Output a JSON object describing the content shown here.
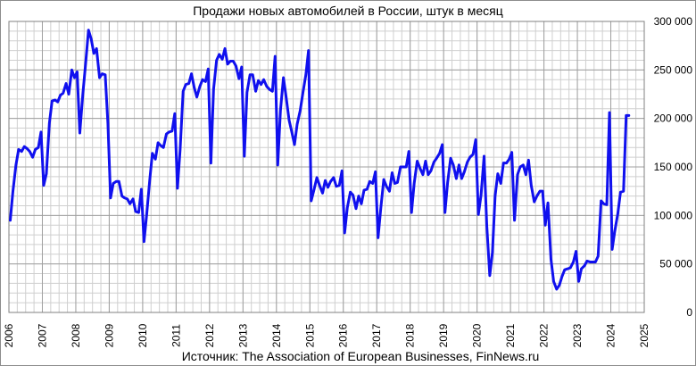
{
  "chart_data": {
    "type": "line",
    "title": "Продажи новых автомобилей в России, штук в месяц",
    "source": "Источник: The Association of European Businesses, FinNews.ru",
    "xlabel": "",
    "ylabel": "",
    "xlim": [
      2006,
      2025
    ],
    "ylim": [
      0,
      300000
    ],
    "x_ticks": [
      2006,
      2007,
      2008,
      2009,
      2010,
      2011,
      2012,
      2013,
      2014,
      2015,
      2016,
      2017,
      2018,
      2019,
      2020,
      2021,
      2022,
      2023,
      2024,
      2025
    ],
    "y_ticks": [
      0,
      50000,
      100000,
      150000,
      200000,
      250000,
      300000
    ],
    "y_tick_labels": [
      "0",
      "50 000",
      "100 000",
      "150 000",
      "200 000",
      "250 000",
      "300 000"
    ],
    "y_axis_side": "right",
    "grid": true,
    "line_color": "#1010ee",
    "series": [
      {
        "name": "",
        "x": [
          2006.04,
          2006.12,
          2006.21,
          2006.29,
          2006.38,
          2006.46,
          2006.54,
          2006.62,
          2006.71,
          2006.79,
          2006.88,
          2006.96,
          2007.04,
          2007.12,
          2007.21,
          2007.29,
          2007.38,
          2007.46,
          2007.54,
          2007.62,
          2007.71,
          2007.79,
          2007.88,
          2007.96,
          2008.04,
          2008.12,
          2008.21,
          2008.29,
          2008.38,
          2008.46,
          2008.54,
          2008.62,
          2008.71,
          2008.79,
          2008.88,
          2008.96,
          2009.04,
          2009.12,
          2009.21,
          2009.29,
          2009.38,
          2009.46,
          2009.54,
          2009.62,
          2009.71,
          2009.79,
          2009.88,
          2009.96,
          2010.04,
          2010.12,
          2010.21,
          2010.29,
          2010.38,
          2010.46,
          2010.54,
          2010.62,
          2010.71,
          2010.79,
          2010.88,
          2010.96,
          2011.04,
          2011.12,
          2011.21,
          2011.29,
          2011.38,
          2011.46,
          2011.54,
          2011.62,
          2011.71,
          2011.79,
          2011.88,
          2011.96,
          2012.04,
          2012.12,
          2012.21,
          2012.29,
          2012.38,
          2012.46,
          2012.54,
          2012.62,
          2012.71,
          2012.79,
          2012.88,
          2012.96,
          2013.04,
          2013.12,
          2013.21,
          2013.29,
          2013.38,
          2013.46,
          2013.54,
          2013.62,
          2013.71,
          2013.79,
          2013.88,
          2013.96,
          2014.04,
          2014.12,
          2014.21,
          2014.29,
          2014.38,
          2014.46,
          2014.54,
          2014.62,
          2014.71,
          2014.79,
          2014.88,
          2014.96,
          2015.04,
          2015.12,
          2015.21,
          2015.29,
          2015.38,
          2015.46,
          2015.54,
          2015.62,
          2015.71,
          2015.79,
          2015.88,
          2015.96,
          2016.04,
          2016.12,
          2016.21,
          2016.29,
          2016.38,
          2016.46,
          2016.54,
          2016.62,
          2016.71,
          2016.79,
          2016.88,
          2016.96,
          2017.04,
          2017.12,
          2017.21,
          2017.29,
          2017.38,
          2017.46,
          2017.54,
          2017.62,
          2017.71,
          2017.79,
          2017.88,
          2017.96,
          2018.04,
          2018.12,
          2018.21,
          2018.29,
          2018.38,
          2018.46,
          2018.54,
          2018.62,
          2018.71,
          2018.79,
          2018.88,
          2018.96,
          2019.04,
          2019.12,
          2019.21,
          2019.29,
          2019.38,
          2019.46,
          2019.54,
          2019.62,
          2019.71,
          2019.79,
          2019.88,
          2019.96,
          2020.04,
          2020.12,
          2020.21,
          2020.29,
          2020.38,
          2020.46,
          2020.54,
          2020.62,
          2020.71,
          2020.79,
          2020.88,
          2020.96,
          2021.04,
          2021.12,
          2021.21,
          2021.29,
          2021.38,
          2021.46,
          2021.54,
          2021.62,
          2021.71,
          2021.79,
          2021.88,
          2021.96,
          2022.04,
          2022.12,
          2022.21,
          2022.29,
          2022.38,
          2022.46,
          2022.54,
          2022.62,
          2022.71,
          2022.79,
          2022.88,
          2022.96,
          2023.04,
          2023.12,
          2023.21,
          2023.29,
          2023.38,
          2023.46,
          2023.54,
          2023.62,
          2023.71,
          2023.79,
          2023.88,
          2023.96,
          2024.04,
          2024.12,
          2024.21,
          2024.29,
          2024.38,
          2024.46,
          2024.54
        ],
        "y": [
          95000,
          125000,
          152000,
          168000,
          166000,
          171000,
          169000,
          166000,
          160000,
          168000,
          170000,
          186000,
          131000,
          143000,
          195000,
          218000,
          219000,
          217000,
          224000,
          226000,
          236000,
          225000,
          250000,
          242000,
          248000,
          185000,
          225000,
          255000,
          291000,
          282000,
          267000,
          272000,
          242000,
          246000,
          245000,
          195000,
          118000,
          133000,
          135000,
          135000,
          120000,
          118000,
          117000,
          112000,
          117000,
          104000,
          103000,
          127000,
          73000,
          101000,
          136000,
          164000,
          158000,
          175000,
          172000,
          170000,
          184000,
          186000,
          187000,
          205000,
          128000,
          168000,
          228000,
          235000,
          236000,
          246000,
          232000,
          222000,
          233000,
          240000,
          238000,
          251000,
          154000,
          230000,
          260000,
          266000,
          261000,
          272000,
          256000,
          259000,
          259000,
          254000,
          241000,
          253000,
          161000,
          227000,
          245000,
          245000,
          228000,
          239000,
          235000,
          240000,
          233000,
          230000,
          228000,
          264000,
          152000,
          208000,
          242000,
          222000,
          198000,
          186000,
          173000,
          194000,
          208000,
          226000,
          245000,
          270000,
          115000,
          126000,
          139000,
          131000,
          123000,
          136000,
          129000,
          135000,
          139000,
          130000,
          131000,
          146000,
          82000,
          108000,
          124000,
          121000,
          107000,
          120000,
          112000,
          126000,
          127000,
          135000,
          133000,
          145000,
          77000,
          107000,
          137000,
          130000,
          125000,
          144000,
          133000,
          134000,
          150000,
          150000,
          150000,
          166000,
          103000,
          133000,
          156000,
          149000,
          142000,
          156000,
          142000,
          146000,
          155000,
          159000,
          164000,
          173000,
          103000,
          134000,
          159000,
          152000,
          138000,
          152000,
          138000,
          145000,
          155000,
          160000,
          163000,
          178000,
          101000,
          121000,
          161000,
          90000,
          38000,
          62000,
          120000,
          143000,
          133000,
          154000,
          154000,
          158000,
          165000,
          95000,
          142000,
          150000,
          152000,
          142000,
          157000,
          131000,
          114000,
          120000,
          125000,
          125000,
          90000,
          113000,
          55000,
          32000,
          24000,
          28000,
          37000,
          44000,
          45000,
          46000,
          52000,
          63000,
          32000,
          45000,
          48000,
          53000,
          52000,
          52000,
          52000,
          58000,
          115000,
          112000,
          111000,
          206000,
          65000,
          84000,
          102000,
          124000,
          125000,
          203000,
          203000
        ]
      }
    ]
  }
}
